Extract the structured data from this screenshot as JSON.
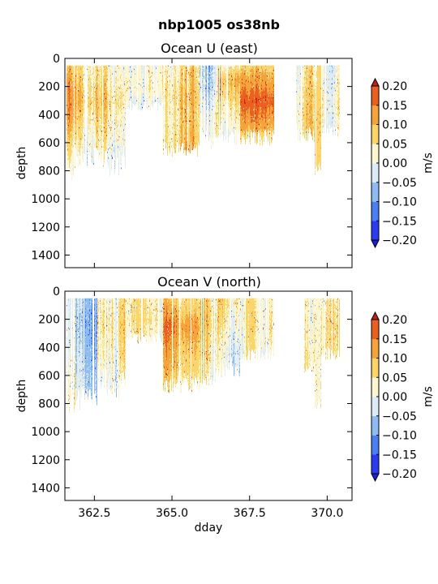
{
  "figure": {
    "suptitle": "nbp1005 os38nb"
  },
  "colorbar": {
    "levels": [
      -0.2,
      -0.15,
      -0.1,
      -0.05,
      0.0,
      0.05,
      0.1,
      0.15,
      0.2
    ],
    "tick_labels": [
      "−0.20",
      "−0.15",
      "−0.10",
      "−0.05",
      "0.00",
      "0.05",
      "0.10",
      "0.15",
      "0.20"
    ],
    "colors": [
      "#2a3cf0",
      "#4a7ef2",
      "#8fbcf0",
      "#dcecf7",
      "#fdf6d0",
      "#fbd56a",
      "#f4a43a",
      "#ea6020"
    ],
    "under_color": "#1f1fd8",
    "over_color": "#c8200e",
    "label": "m/s"
  },
  "chart_data": [
    {
      "type": "heatmap",
      "title": "Ocean U (east)",
      "xlabel": "",
      "ylabel": "depth",
      "xlim": [
        361.55,
        370.8
      ],
      "ylim": [
        1490,
        0
      ],
      "x_ticks": [
        362.5,
        365.0,
        367.5,
        370.0
      ],
      "x_tick_labels": [
        "",
        "",
        "",
        ""
      ],
      "y_ticks": [
        0,
        200,
        400,
        600,
        800,
        1000,
        1200,
        1400
      ],
      "y_tick_labels": [
        "0",
        "200",
        "400",
        "600",
        "800",
        "1000",
        "1200",
        "1400"
      ],
      "cell_depth": 8,
      "data_top": 50,
      "segments": [
        {
          "x": [
            361.6,
            361.9
          ],
          "zmax": 800,
          "depth_var": 80,
          "profile": [
            [
              50,
              0.09
            ],
            [
              200,
              0.14
            ],
            [
              400,
              0.14
            ],
            [
              600,
              0.07
            ],
            [
              800,
              0.03
            ]
          ],
          "noise": 0.035
        },
        {
          "x": [
            361.9,
            362.6
          ],
          "zmax": 700,
          "depth_var": 80,
          "profile": [
            [
              50,
              0.07
            ],
            [
              300,
              0.11
            ],
            [
              500,
              0.07
            ],
            [
              700,
              0.03
            ]
          ],
          "noise": 0.04
        },
        {
          "x": [
            362.6,
            363.5
          ],
          "zmax": 730,
          "depth_var": 120,
          "profile": [
            [
              50,
              0.04
            ],
            [
              300,
              0.08
            ],
            [
              500,
              0.05
            ],
            [
              730,
              0.01
            ]
          ],
          "noise": 0.05
        },
        {
          "x": [
            363.5,
            364.7
          ],
          "zmax": 330,
          "depth_var": 40,
          "profile": [
            [
              50,
              0.02
            ],
            [
              200,
              0.04
            ],
            [
              330,
              0.0
            ]
          ],
          "noise": 0.03
        },
        {
          "x": [
            364.7,
            365.9
          ],
          "zmax": 650,
          "depth_var": 60,
          "profile": [
            [
              50,
              0.03
            ],
            [
              250,
              0.06
            ],
            [
              450,
              0.05
            ],
            [
              650,
              0.07
            ]
          ],
          "noise": 0.045
        },
        {
          "x": [
            365.9,
            366.5
          ],
          "zmax": 560,
          "depth_var": 80,
          "profile": [
            [
              50,
              -0.04
            ],
            [
              200,
              -0.03
            ],
            [
              400,
              0.02
            ],
            [
              560,
              0.03
            ]
          ],
          "noise": 0.05
        },
        {
          "x": [
            366.5,
            367.2
          ],
          "zmax": 560,
          "depth_var": 70,
          "profile": [
            [
              50,
              0.06
            ],
            [
              150,
              0.13
            ],
            [
              350,
              0.07
            ],
            [
              560,
              0.02
            ]
          ],
          "noise": 0.035
        },
        {
          "x": [
            367.2,
            368.3
          ],
          "zmax": 560,
          "depth_var": 60,
          "profile": [
            [
              50,
              0.07
            ],
            [
              300,
              0.17
            ],
            [
              500,
              0.1
            ],
            [
              560,
              0.05
            ]
          ],
          "noise": 0.03
        },
        {
          "x": [
            369.0,
            369.6
          ],
          "zmax": 520,
          "depth_var": 70,
          "profile": [
            [
              50,
              0.0
            ],
            [
              250,
              0.02
            ],
            [
              520,
              0.03
            ]
          ],
          "noise": 0.04
        },
        {
          "x": [
            369.6,
            369.8
          ],
          "zmax": 780,
          "depth_var": 50,
          "profile": [
            [
              50,
              0.04
            ],
            [
              400,
              0.07
            ],
            [
              780,
              0.06
            ]
          ],
          "noise": 0.03
        },
        {
          "x": [
            369.8,
            370.4
          ],
          "zmax": 510,
          "depth_var": 50,
          "profile": [
            [
              50,
              0.03
            ],
            [
              300,
              0.06
            ],
            [
              510,
              0.04
            ]
          ],
          "noise": 0.04
        }
      ]
    },
    {
      "type": "heatmap",
      "title": "Ocean V (north)",
      "xlabel": "dday",
      "ylabel": "depth",
      "xlim": [
        361.55,
        370.8
      ],
      "ylim": [
        1490,
        0
      ],
      "x_ticks": [
        362.5,
        365.0,
        367.5,
        370.0
      ],
      "x_tick_labels": [
        "362.5",
        "365.0",
        "367.5",
        "370.0"
      ],
      "y_ticks": [
        0,
        200,
        400,
        600,
        800,
        1000,
        1200,
        1400
      ],
      "y_tick_labels": [
        "0",
        "200",
        "400",
        "600",
        "800",
        "1000",
        "1200",
        "1400"
      ],
      "cell_depth": 8,
      "data_top": 50,
      "segments": [
        {
          "x": [
            361.6,
            361.9
          ],
          "zmax": 800,
          "depth_var": 70,
          "profile": [
            [
              50,
              -0.03
            ],
            [
              300,
              -0.02
            ],
            [
              600,
              0.0
            ],
            [
              800,
              0.02
            ]
          ],
          "noise": 0.04
        },
        {
          "x": [
            361.9,
            362.6
          ],
          "zmax": 760,
          "depth_var": 80,
          "profile": [
            [
              50,
              -0.06
            ],
            [
              200,
              -0.08
            ],
            [
              450,
              -0.06
            ],
            [
              760,
              -0.03
            ]
          ],
          "noise": 0.035
        },
        {
          "x": [
            362.6,
            363.5
          ],
          "zmax": 660,
          "depth_var": 120,
          "profile": [
            [
              50,
              0.03
            ],
            [
              250,
              0.05
            ],
            [
              450,
              0.03
            ],
            [
              660,
              0.0
            ]
          ],
          "noise": 0.055
        },
        {
          "x": [
            363.5,
            364.7
          ],
          "zmax": 330,
          "depth_var": 40,
          "profile": [
            [
              50,
              0.02
            ],
            [
              200,
              0.03
            ],
            [
              330,
              0.01
            ]
          ],
          "noise": 0.03
        },
        {
          "x": [
            364.7,
            365.9
          ],
          "zmax": 660,
          "depth_var": 60,
          "profile": [
            [
              50,
              0.07
            ],
            [
              250,
              0.14
            ],
            [
              450,
              0.1
            ],
            [
              660,
              0.06
            ]
          ],
          "noise": 0.03
        },
        {
          "x": [
            365.9,
            366.5
          ],
          "zmax": 610,
          "depth_var": 70,
          "profile": [
            [
              50,
              0.05
            ],
            [
              200,
              0.07
            ],
            [
              400,
              0.04
            ],
            [
              610,
              0.02
            ]
          ],
          "noise": 0.05
        },
        {
          "x": [
            366.5,
            367.2
          ],
          "zmax": 540,
          "depth_var": 70,
          "profile": [
            [
              50,
              0.08
            ],
            [
              200,
              0.06
            ],
            [
              400,
              0.02
            ],
            [
              540,
              0.01
            ]
          ],
          "noise": 0.045
        },
        {
          "x": [
            367.2,
            368.3
          ],
          "zmax": 440,
          "depth_var": 50,
          "profile": [
            [
              50,
              0.03
            ],
            [
              250,
              0.04
            ],
            [
              440,
              0.02
            ]
          ],
          "noise": 0.035
        },
        {
          "x": [
            369.2,
            369.6
          ],
          "zmax": 530,
          "depth_var": 60,
          "profile": [
            [
              50,
              0.01
            ],
            [
              250,
              0.02
            ],
            [
              530,
              0.04
            ]
          ],
          "noise": 0.04
        },
        {
          "x": [
            369.6,
            369.8
          ],
          "zmax": 780,
          "depth_var": 50,
          "profile": [
            [
              50,
              0.04
            ],
            [
              400,
              0.05
            ],
            [
              780,
              0.04
            ]
          ],
          "noise": 0.03
        },
        {
          "x": [
            369.8,
            370.4
          ],
          "zmax": 440,
          "depth_var": 50,
          "profile": [
            [
              50,
              0.02
            ],
            [
              250,
              0.04
            ],
            [
              440,
              0.03
            ]
          ],
          "noise": 0.04
        }
      ]
    }
  ]
}
